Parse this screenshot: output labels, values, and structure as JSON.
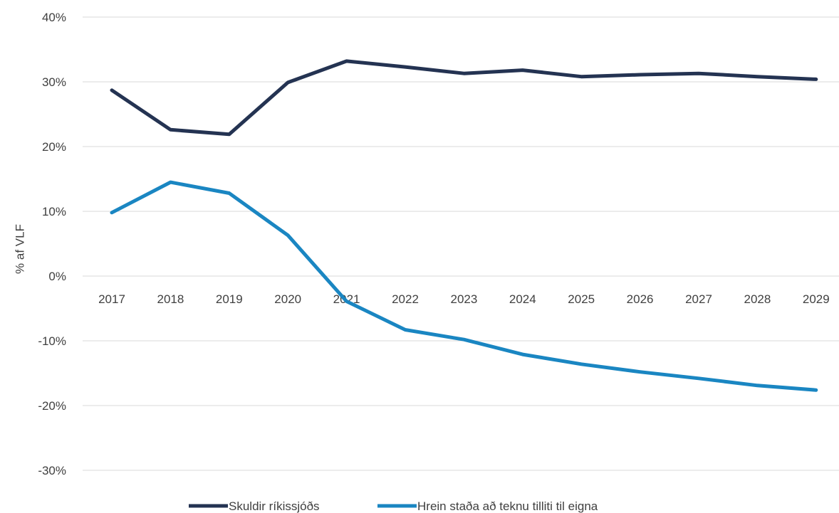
{
  "chart_data": {
    "type": "line",
    "title": "",
    "xlabel": "",
    "ylabel": "% af VLF",
    "ylim": [
      -30,
      40
    ],
    "ytick_step": 10,
    "ytick_labels": [
      "-30%",
      "-20%",
      "-10%",
      "0%",
      "10%",
      "20%",
      "30%",
      "40%"
    ],
    "grid": true,
    "legend_position": "bottom",
    "categories": [
      "2017",
      "2018",
      "2019",
      "2020",
      "2021",
      "2022",
      "2023",
      "2024",
      "2025",
      "2026",
      "2027",
      "2028",
      "2029"
    ],
    "series": [
      {
        "name": "Skuldir ríkissjóðs",
        "color": "#243352",
        "values": [
          28.7,
          22.6,
          21.9,
          29.9,
          33.2,
          32.3,
          31.3,
          31.8,
          30.8,
          31.1,
          31.3,
          30.8,
          30.4
        ]
      },
      {
        "name": "Hrein staða að teknu tilliti til eigna",
        "color": "#1a86c2",
        "values": [
          9.8,
          14.5,
          12.8,
          6.3,
          -3.9,
          -8.3,
          -9.8,
          -12.1,
          -13.6,
          -14.8,
          -15.8,
          -16.9,
          -17.6
        ]
      }
    ]
  }
}
